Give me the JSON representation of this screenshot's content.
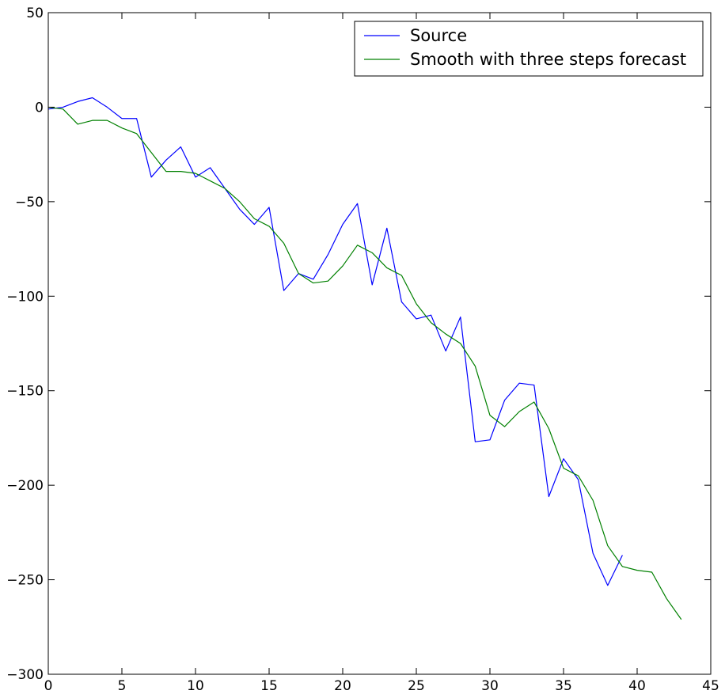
{
  "chart_data": {
    "type": "line",
    "title": "",
    "xlabel": "",
    "ylabel": "",
    "xlim": [
      0,
      45
    ],
    "ylim": [
      -300,
      50
    ],
    "x_ticks": [
      0,
      5,
      10,
      15,
      20,
      25,
      30,
      35,
      40,
      45
    ],
    "y_ticks": [
      50,
      0,
      -50,
      -100,
      -150,
      -200,
      -250,
      -300
    ],
    "x_tick_labels": [
      "0",
      "5",
      "10",
      "15",
      "20",
      "25",
      "30",
      "35",
      "40",
      "45"
    ],
    "y_tick_labels": [
      "50",
      "0",
      "−50",
      "−100",
      "−150",
      "−200",
      "−250",
      "−300"
    ],
    "grid": false,
    "legend_position": "top-right",
    "series": [
      {
        "name": "Source",
        "color": "#0000ff",
        "x": [
          0,
          1,
          2,
          3,
          4,
          5,
          6,
          7,
          8,
          9,
          10,
          11,
          12,
          13,
          14,
          15,
          16,
          17,
          18,
          19,
          20,
          21,
          22,
          23,
          24,
          25,
          26,
          27,
          28,
          29,
          30,
          31,
          32,
          33,
          34,
          35,
          36,
          37,
          38,
          39
        ],
        "values": [
          -1,
          0,
          3,
          5,
          0,
          -6,
          -6,
          -37,
          -28,
          -21,
          -37,
          -32,
          -43,
          -54,
          -62,
          -53,
          -97,
          -88,
          -91,
          -78,
          -62,
          -51,
          -94,
          -64,
          -103,
          -112,
          -110,
          -129,
          -111,
          -177,
          -176,
          -155,
          -146,
          -147,
          -206,
          -186,
          -197,
          -236,
          -253,
          -237
        ]
      },
      {
        "name": "Smooth with three steps forecast",
        "color": "#008000",
        "x": [
          0,
          1,
          2,
          3,
          4,
          5,
          6,
          7,
          8,
          9,
          10,
          11,
          12,
          13,
          14,
          15,
          16,
          17,
          18,
          19,
          20,
          21,
          22,
          23,
          24,
          25,
          26,
          27,
          28,
          29,
          30,
          31,
          32,
          33,
          34,
          35,
          36,
          37,
          38,
          39,
          40,
          41,
          42,
          43
        ],
        "values": [
          0,
          -1,
          -9,
          -7,
          -7,
          -11,
          -14,
          -24,
          -34,
          -34,
          -35,
          -39,
          -43,
          -50,
          -59,
          -63,
          -72,
          -88,
          -93,
          -92,
          -84,
          -73,
          -77,
          -85,
          -89,
          -104,
          -114,
          -120,
          -125,
          -137,
          -163,
          -169,
          -161,
          -156,
          -170,
          -191,
          -195,
          -208,
          -232,
          -243,
          -245,
          -246,
          -260,
          -271
        ]
      }
    ]
  }
}
